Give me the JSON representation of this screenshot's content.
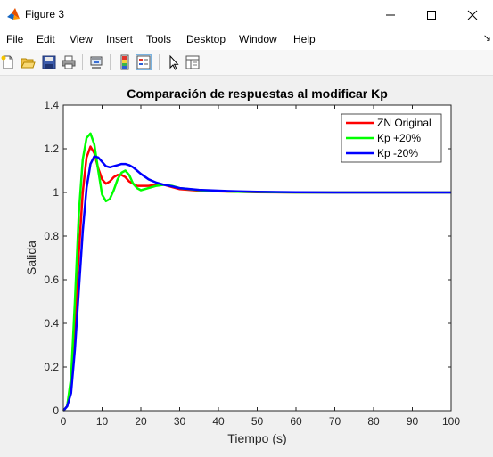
{
  "window": {
    "title": "Figure 3",
    "app_icon": "matlab-icon"
  },
  "menu": [
    "File",
    "Edit",
    "View",
    "Insert",
    "Tools",
    "Desktop",
    "Window",
    "Help"
  ],
  "toolbar": {
    "tools": [
      "new-figure-icon",
      "open-file-icon",
      "save-icon",
      "print-icon",
      "link-plot-icon",
      "colorbar-icon",
      "legend-icon",
      "edit-plot-arrow-icon",
      "property-inspector-icon"
    ],
    "selected": "legend-icon"
  },
  "chart_data": {
    "type": "line",
    "title": "Comparación de respuestas al modificar Kp",
    "xlabel": "Tiempo (s)",
    "ylabel": "Salida",
    "xlim": [
      0,
      100
    ],
    "ylim": [
      0,
      1.4
    ],
    "xticks": [
      "0",
      "10",
      "20",
      "30",
      "40",
      "50",
      "60",
      "70",
      "80",
      "90",
      "100"
    ],
    "yticks": [
      "0",
      "0.2",
      "0.4",
      "0.6",
      "0.8",
      "1",
      "1.2",
      "1.4"
    ],
    "grid": false,
    "legend_position": "top-right",
    "series": [
      {
        "name": "ZN Original",
        "color": "#ff0000",
        "points": [
          [
            0,
            0
          ],
          [
            1,
            0.02
          ],
          [
            2,
            0.12
          ],
          [
            3,
            0.38
          ],
          [
            4,
            0.72
          ],
          [
            5,
            1.0
          ],
          [
            6,
            1.16
          ],
          [
            7,
            1.21
          ],
          [
            8,
            1.18
          ],
          [
            9,
            1.11
          ],
          [
            10,
            1.06
          ],
          [
            11,
            1.04
          ],
          [
            12,
            1.05
          ],
          [
            13,
            1.07
          ],
          [
            14,
            1.08
          ],
          [
            15,
            1.08
          ],
          [
            16,
            1.07
          ],
          [
            17,
            1.05
          ],
          [
            18,
            1.04
          ],
          [
            19,
            1.03
          ],
          [
            20,
            1.03
          ],
          [
            22,
            1.03
          ],
          [
            24,
            1.035
          ],
          [
            26,
            1.035
          ],
          [
            28,
            1.025
          ],
          [
            30,
            1.015
          ],
          [
            35,
            1.008
          ],
          [
            40,
            1.005
          ],
          [
            45,
            1.003
          ],
          [
            50,
            1.001
          ],
          [
            60,
            1.0
          ],
          [
            70,
            1.0
          ],
          [
            80,
            1.0
          ],
          [
            90,
            1.0
          ],
          [
            100,
            1.0
          ]
        ]
      },
      {
        "name": "Kp +20%",
        "color": "#00ff00",
        "points": [
          [
            0,
            0
          ],
          [
            1,
            0.02
          ],
          [
            2,
            0.15
          ],
          [
            3,
            0.5
          ],
          [
            4,
            0.9
          ],
          [
            5,
            1.15
          ],
          [
            6,
            1.25
          ],
          [
            7,
            1.27
          ],
          [
            8,
            1.22
          ],
          [
            9,
            1.1
          ],
          [
            10,
            0.99
          ],
          [
            11,
            0.96
          ],
          [
            12,
            0.97
          ],
          [
            13,
            1.01
          ],
          [
            14,
            1.06
          ],
          [
            15,
            1.09
          ],
          [
            16,
            1.1
          ],
          [
            17,
            1.08
          ],
          [
            18,
            1.04
          ],
          [
            19,
            1.02
          ],
          [
            20,
            1.01
          ],
          [
            22,
            1.02
          ],
          [
            24,
            1.03
          ],
          [
            26,
            1.035
          ],
          [
            28,
            1.03
          ],
          [
            30,
            1.02
          ],
          [
            35,
            1.01
          ],
          [
            40,
            1.006
          ],
          [
            45,
            1.003
          ],
          [
            50,
            1.002
          ],
          [
            60,
            1.0
          ],
          [
            70,
            1.0
          ],
          [
            80,
            1.0
          ],
          [
            90,
            1.0
          ],
          [
            100,
            1.0
          ]
        ]
      },
      {
        "name": "Kp -20%",
        "color": "#0000ff",
        "points": [
          [
            0,
            0
          ],
          [
            1,
            0.02
          ],
          [
            2,
            0.08
          ],
          [
            3,
            0.28
          ],
          [
            4,
            0.55
          ],
          [
            5,
            0.82
          ],
          [
            6,
            1.02
          ],
          [
            7,
            1.13
          ],
          [
            8,
            1.165
          ],
          [
            9,
            1.16
          ],
          [
            10,
            1.14
          ],
          [
            11,
            1.12
          ],
          [
            12,
            1.115
          ],
          [
            13,
            1.12
          ],
          [
            14,
            1.125
          ],
          [
            15,
            1.13
          ],
          [
            16,
            1.13
          ],
          [
            17,
            1.125
          ],
          [
            18,
            1.115
          ],
          [
            19,
            1.1
          ],
          [
            20,
            1.085
          ],
          [
            22,
            1.06
          ],
          [
            24,
            1.045
          ],
          [
            26,
            1.035
          ],
          [
            28,
            1.028
          ],
          [
            30,
            1.02
          ],
          [
            35,
            1.012
          ],
          [
            40,
            1.008
          ],
          [
            45,
            1.005
          ],
          [
            50,
            1.003
          ],
          [
            55,
            1.002
          ],
          [
            60,
            1.001
          ],
          [
            70,
            1.0
          ],
          [
            80,
            1.0
          ],
          [
            90,
            1.0
          ],
          [
            100,
            1.0
          ]
        ]
      }
    ]
  }
}
